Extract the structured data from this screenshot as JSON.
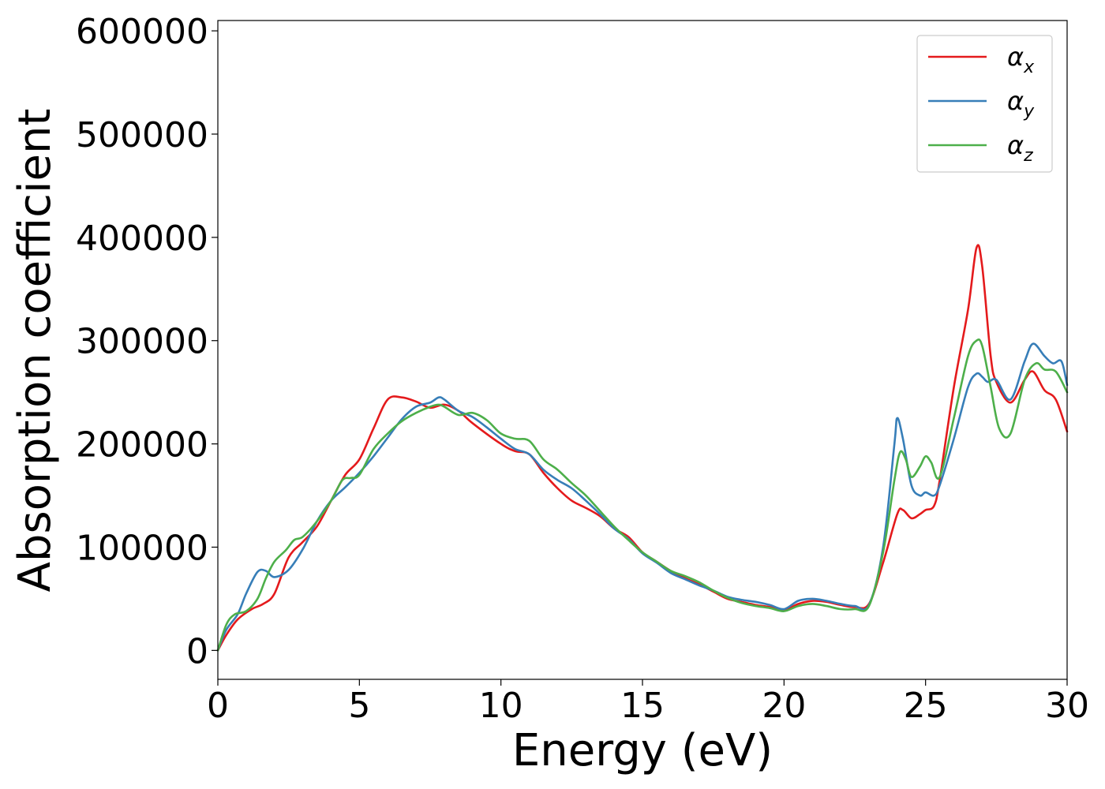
{
  "chart_data": {
    "type": "line",
    "title": "",
    "xlabel": "Energy (eV)",
    "ylabel": "Absorption coefficient",
    "xlim": [
      0,
      30
    ],
    "ylim": [
      -28000,
      610000
    ],
    "xticks": [
      0,
      5,
      10,
      15,
      20,
      25,
      30
    ],
    "yticks": [
      0,
      100000,
      200000,
      300000,
      400000,
      500000,
      600000
    ],
    "xtick_labels": [
      "0",
      "5",
      "10",
      "15",
      "20",
      "25",
      "30"
    ],
    "ytick_labels": [
      "0",
      "100000",
      "200000",
      "300000",
      "400000",
      "500000",
      "600000"
    ],
    "grid": false,
    "legend_position": "top-right",
    "series": [
      {
        "name": "α",
        "subscript": "x",
        "color": "#e41a1c",
        "points": [
          [
            0,
            0
          ],
          [
            0.3,
            15000
          ],
          [
            0.7,
            30000
          ],
          [
            1.2,
            40000
          ],
          [
            1.6,
            45000
          ],
          [
            2.0,
            55000
          ],
          [
            2.5,
            90000
          ],
          [
            3.0,
            105000
          ],
          [
            3.5,
            120000
          ],
          [
            4.0,
            145000
          ],
          [
            4.5,
            170000
          ],
          [
            5.0,
            185000
          ],
          [
            5.5,
            215000
          ],
          [
            6.0,
            243000
          ],
          [
            6.5,
            245000
          ],
          [
            7.0,
            241000
          ],
          [
            7.5,
            235000
          ],
          [
            8.0,
            238000
          ],
          [
            8.5,
            232000
          ],
          [
            9.0,
            220000
          ],
          [
            10.0,
            200000
          ],
          [
            10.5,
            193000
          ],
          [
            11.0,
            190000
          ],
          [
            11.5,
            172000
          ],
          [
            12.0,
            157000
          ],
          [
            12.5,
            145000
          ],
          [
            13.0,
            138000
          ],
          [
            13.5,
            130000
          ],
          [
            14.0,
            118000
          ],
          [
            14.5,
            110000
          ],
          [
            15.0,
            95000
          ],
          [
            15.5,
            86000
          ],
          [
            16.0,
            77000
          ],
          [
            16.5,
            70000
          ],
          [
            17.0,
            64000
          ],
          [
            17.5,
            57000
          ],
          [
            18.0,
            50000
          ],
          [
            18.5,
            47000
          ],
          [
            19.0,
            44000
          ],
          [
            19.5,
            42000
          ],
          [
            20.0,
            39000
          ],
          [
            20.5,
            45000
          ],
          [
            21.0,
            48000
          ],
          [
            21.5,
            47000
          ],
          [
            22.0,
            44000
          ],
          [
            22.5,
            42000
          ],
          [
            23.0,
            45000
          ],
          [
            23.5,
            85000
          ],
          [
            24.0,
            132000
          ],
          [
            24.2,
            136000
          ],
          [
            24.5,
            128000
          ],
          [
            24.8,
            132000
          ],
          [
            25.0,
            136000
          ],
          [
            25.3,
            140000
          ],
          [
            25.5,
            165000
          ],
          [
            26.0,
            255000
          ],
          [
            26.5,
            330000
          ],
          [
            26.8,
            390000
          ],
          [
            27.0,
            372000
          ],
          [
            27.3,
            285000
          ],
          [
            27.5,
            260000
          ],
          [
            28.0,
            240000
          ],
          [
            28.5,
            262000
          ],
          [
            28.8,
            270000
          ],
          [
            29.2,
            252000
          ],
          [
            29.6,
            243000
          ],
          [
            30.0,
            212000
          ]
        ]
      },
      {
        "name": "α",
        "subscript": "y",
        "color": "#377eb8",
        "points": [
          [
            0,
            0
          ],
          [
            0.3,
            20000
          ],
          [
            0.7,
            35000
          ],
          [
            1.0,
            55000
          ],
          [
            1.4,
            76000
          ],
          [
            1.7,
            77000
          ],
          [
            2.0,
            71000
          ],
          [
            2.5,
            78000
          ],
          [
            3.0,
            98000
          ],
          [
            3.5,
            125000
          ],
          [
            4.0,
            145000
          ],
          [
            4.5,
            158000
          ],
          [
            5.0,
            172000
          ],
          [
            5.5,
            188000
          ],
          [
            6.0,
            206000
          ],
          [
            6.5,
            224000
          ],
          [
            7.0,
            236000
          ],
          [
            7.5,
            240000
          ],
          [
            7.8,
            245000
          ],
          [
            8.0,
            243000
          ],
          [
            8.5,
            232000
          ],
          [
            9.0,
            226000
          ],
          [
            9.5,
            216000
          ],
          [
            10.0,
            205000
          ],
          [
            10.5,
            195000
          ],
          [
            11.0,
            190000
          ],
          [
            11.5,
            175000
          ],
          [
            12.0,
            165000
          ],
          [
            12.5,
            157000
          ],
          [
            13.0,
            145000
          ],
          [
            13.5,
            132000
          ],
          [
            14.0,
            118000
          ],
          [
            14.5,
            108000
          ],
          [
            15.0,
            94000
          ],
          [
            15.5,
            85000
          ],
          [
            16.0,
            75000
          ],
          [
            16.5,
            69000
          ],
          [
            17.0,
            63000
          ],
          [
            17.5,
            58000
          ],
          [
            18.0,
            52000
          ],
          [
            18.5,
            49000
          ],
          [
            19.0,
            47000
          ],
          [
            19.5,
            44000
          ],
          [
            20.0,
            40000
          ],
          [
            20.5,
            48000
          ],
          [
            21.0,
            50000
          ],
          [
            21.5,
            48000
          ],
          [
            22.0,
            45000
          ],
          [
            22.5,
            43000
          ],
          [
            23.0,
            44000
          ],
          [
            23.5,
            100000
          ],
          [
            23.9,
            200000
          ],
          [
            24.0,
            225000
          ],
          [
            24.2,
            205000
          ],
          [
            24.5,
            160000
          ],
          [
            24.8,
            150000
          ],
          [
            25.0,
            153000
          ],
          [
            25.3,
            150000
          ],
          [
            25.5,
            160000
          ],
          [
            26.0,
            205000
          ],
          [
            26.5,
            255000
          ],
          [
            26.8,
            268000
          ],
          [
            27.0,
            265000
          ],
          [
            27.2,
            260000
          ],
          [
            27.5,
            262000
          ],
          [
            28.0,
            243000
          ],
          [
            28.5,
            280000
          ],
          [
            28.8,
            297000
          ],
          [
            29.2,
            285000
          ],
          [
            29.5,
            278000
          ],
          [
            29.8,
            280000
          ],
          [
            30.0,
            257000
          ]
        ]
      },
      {
        "name": "α",
        "subscript": "z",
        "color": "#4daf4a",
        "points": [
          [
            0,
            0
          ],
          [
            0.3,
            25000
          ],
          [
            0.6,
            35000
          ],
          [
            1.0,
            38000
          ],
          [
            1.4,
            50000
          ],
          [
            1.7,
            70000
          ],
          [
            2.0,
            86000
          ],
          [
            2.4,
            97000
          ],
          [
            2.7,
            107000
          ],
          [
            3.0,
            110000
          ],
          [
            3.5,
            125000
          ],
          [
            4.0,
            145000
          ],
          [
            4.4,
            165000
          ],
          [
            4.7,
            167000
          ],
          [
            5.0,
            170000
          ],
          [
            5.5,
            195000
          ],
          [
            6.0,
            210000
          ],
          [
            6.5,
            222000
          ],
          [
            7.0,
            230000
          ],
          [
            7.5,
            236000
          ],
          [
            7.8,
            238000
          ],
          [
            8.0,
            236000
          ],
          [
            8.5,
            228000
          ],
          [
            9.0,
            230000
          ],
          [
            9.5,
            223000
          ],
          [
            10.0,
            210000
          ],
          [
            10.5,
            205000
          ],
          [
            11.0,
            203000
          ],
          [
            11.5,
            185000
          ],
          [
            12.0,
            175000
          ],
          [
            12.5,
            162000
          ],
          [
            13.0,
            150000
          ],
          [
            13.5,
            135000
          ],
          [
            14.0,
            120000
          ],
          [
            14.5,
            107000
          ],
          [
            15.0,
            95000
          ],
          [
            15.5,
            86000
          ],
          [
            16.0,
            77000
          ],
          [
            16.5,
            72000
          ],
          [
            17.0,
            66000
          ],
          [
            17.5,
            58000
          ],
          [
            18.0,
            51000
          ],
          [
            18.5,
            46000
          ],
          [
            19.0,
            43000
          ],
          [
            19.5,
            41000
          ],
          [
            20.0,
            38000
          ],
          [
            20.5,
            43000
          ],
          [
            21.0,
            45000
          ],
          [
            21.5,
            43000
          ],
          [
            22.0,
            40000
          ],
          [
            22.5,
            40000
          ],
          [
            23.0,
            43000
          ],
          [
            23.5,
            95000
          ],
          [
            23.9,
            165000
          ],
          [
            24.1,
            192000
          ],
          [
            24.3,
            185000
          ],
          [
            24.5,
            168000
          ],
          [
            24.8,
            178000
          ],
          [
            25.0,
            188000
          ],
          [
            25.2,
            182000
          ],
          [
            25.5,
            168000
          ],
          [
            26.0,
            225000
          ],
          [
            26.5,
            285000
          ],
          [
            26.8,
            300000
          ],
          [
            27.0,
            295000
          ],
          [
            27.3,
            255000
          ],
          [
            27.6,
            215000
          ],
          [
            28.0,
            210000
          ],
          [
            28.5,
            262000
          ],
          [
            28.9,
            278000
          ],
          [
            29.2,
            272000
          ],
          [
            29.6,
            270000
          ],
          [
            30.0,
            250000
          ]
        ]
      }
    ]
  }
}
